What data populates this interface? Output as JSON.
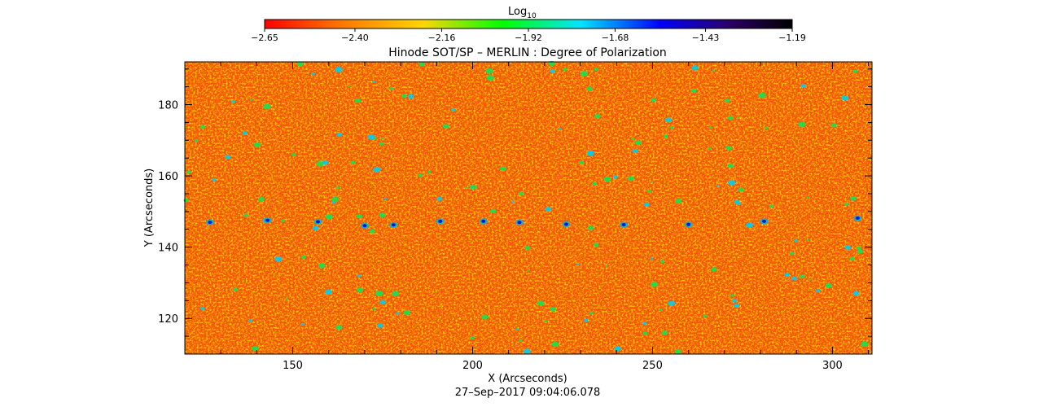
{
  "chart_data": {
    "type": "heatmap",
    "title": "Hinode SOT/SP – MERLIN : Degree of Polarization",
    "xlabel": "X (Arcseconds)",
    "ylabel": "Y (Arcseconds)",
    "timestamp": "27–Sep–2017 09:04:06.078",
    "xlim": [
      120,
      311
    ],
    "ylim": [
      110,
      192
    ],
    "x_ticks": [
      150,
      200,
      250,
      300
    ],
    "y_ticks": [
      120,
      140,
      160,
      180
    ],
    "x_tick_labels": [
      "150",
      "200",
      "250",
      "300"
    ],
    "y_tick_labels": [
      "120",
      "140",
      "160",
      "180"
    ],
    "colorbar": {
      "label_main": "Log",
      "label_sub": "10",
      "ticks": [
        -2.65,
        -2.4,
        -2.16,
        -1.92,
        -1.68,
        -1.43,
        -1.19
      ],
      "tick_labels": [
        "−2.65",
        "−2.40",
        "−2.16",
        "−1.92",
        "−1.68",
        "−1.43",
        "−1.19"
      ],
      "range": [
        -2.65,
        -1.19
      ],
      "colors": [
        "#ff0000",
        "#ff7a00",
        "#ffd700",
        "#00ff00",
        "#00e5ff",
        "#0000ff",
        "#2a0066",
        "#000000"
      ]
    },
    "field_description_values": {
      "dominant_range": [
        -2.65,
        -2.3
      ],
      "strong_spots_y": 147
    }
  }
}
